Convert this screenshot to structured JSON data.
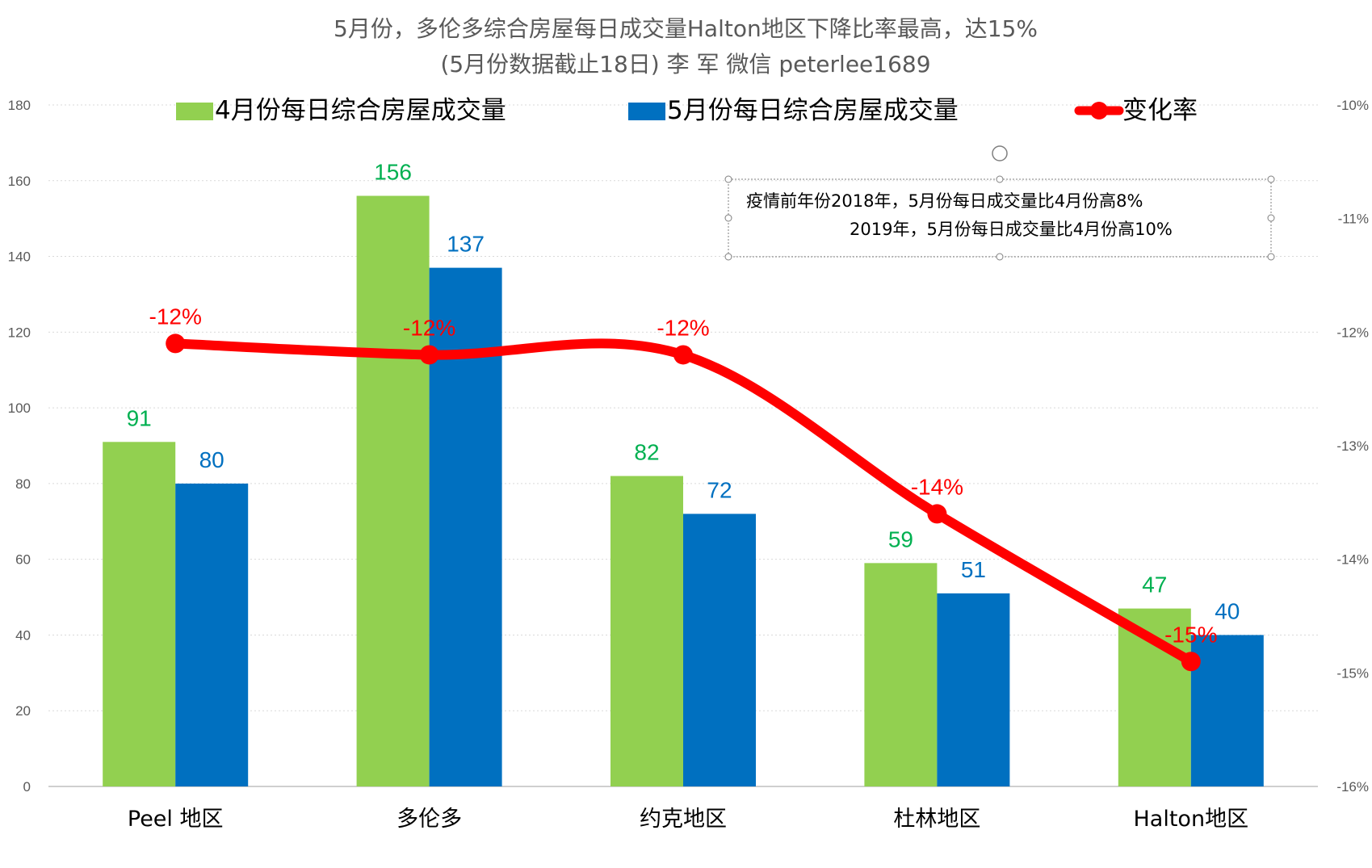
{
  "chart_data": {
    "type": "bar",
    "title": "5月份，多伦多综合房屋每日成交量Halton地区下降比率最高，达15%",
    "subtitle": "(5月份数据截止18日) 李 军  微信 peterlee1689",
    "categories": [
      "Peel 地区",
      "多伦多",
      "约克地区",
      "杜林地区",
      "Halton地区"
    ],
    "series": [
      {
        "name": "4月份每日综合房屋成交量",
        "kind": "bar",
        "axis": "left",
        "color": "#92D050",
        "label_color": "#00B050",
        "values": [
          91,
          156,
          82,
          59,
          47
        ],
        "labels": [
          "91",
          "156",
          "82",
          "59",
          "47"
        ]
      },
      {
        "name": "5月份每日综合房屋成交量",
        "kind": "bar",
        "axis": "left",
        "color": "#0070C0",
        "label_color": "#0070C0",
        "values": [
          80,
          137,
          72,
          51,
          40
        ],
        "labels": [
          "80",
          "137",
          "72",
          "51",
          "40"
        ]
      },
      {
        "name": "变化率",
        "kind": "line",
        "axis": "right",
        "color": "#FF0000",
        "label_color": "#FF0000",
        "values": [
          -12.1,
          -12.2,
          -12.2,
          -13.6,
          -14.9
        ],
        "labels": [
          "-12%",
          "-12%",
          "-12%",
          "-14%",
          "-15%"
        ]
      }
    ],
    "y_left": {
      "min": 0,
      "max": 180,
      "step": 20,
      "ticks": [
        "0",
        "20",
        "40",
        "60",
        "80",
        "100",
        "120",
        "140",
        "160",
        "180"
      ]
    },
    "y_right": {
      "min": -16,
      "max": -10,
      "step": 1,
      "ticks": [
        "-16%",
        "-15%",
        "-14%",
        "-13%",
        "-12%",
        "-11%",
        "-10%"
      ]
    },
    "grid": true,
    "legend_position": "top",
    "annotation": {
      "lines": [
        "疫情前年份2018年，5月份每日成交量比4月份高8%",
        "2019年，5月份每日成交量比4月份高10%"
      ]
    }
  }
}
